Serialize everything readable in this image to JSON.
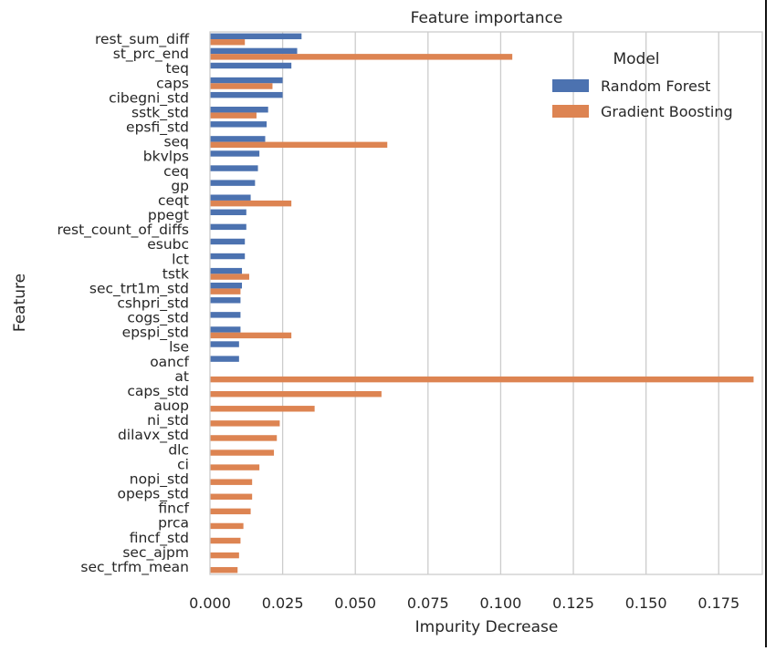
{
  "chart_data": {
    "type": "bar",
    "orientation": "horizontal",
    "title": "Feature importance",
    "xlabel": "Impurity Decrease",
    "ylabel": "Feature",
    "xlim": [
      0,
      0.19
    ],
    "xticks": [
      "0.000",
      "0.025",
      "0.050",
      "0.075",
      "0.100",
      "0.125",
      "0.150",
      "0.175"
    ],
    "grid": "vertical",
    "legend": {
      "title": "Model",
      "position": "top-right"
    },
    "categories": [
      "rest_sum_diff",
      "st_prc_end",
      "teq",
      "caps",
      "cibegni_std",
      "sstk_std",
      "epsfi_std",
      "seq",
      "bkvlps",
      "ceq",
      "gp",
      "ceqt",
      "ppegt",
      "rest_count_of_diffs",
      "esubc",
      "lct",
      "tstk",
      "sec_trt1m_std",
      "cshpri_std",
      "cogs_std",
      "epspi_std",
      "lse",
      "oancf",
      "at",
      "caps_std",
      "auop",
      "ni_std",
      "dilavx_std",
      "dlc",
      "ci",
      "nopi_std",
      "opeps_std",
      "fincf",
      "prca",
      "fincf_std",
      "sec_ajpm",
      "sec_trfm_mean"
    ],
    "series": [
      {
        "name": "Random Forest",
        "color": "#4C72B0",
        "values": [
          0.0315,
          0.03,
          0.028,
          0.025,
          0.025,
          0.02,
          0.0195,
          0.019,
          0.017,
          0.0165,
          0.0155,
          0.014,
          0.0125,
          0.0125,
          0.012,
          0.012,
          0.011,
          0.011,
          0.0105,
          0.0105,
          0.0105,
          0.01,
          0.01,
          null,
          null,
          null,
          null,
          null,
          null,
          null,
          null,
          null,
          null,
          null,
          null,
          null,
          null
        ]
      },
      {
        "name": "Gradient Boosting",
        "color": "#DD8452",
        "values": [
          0.012,
          0.104,
          null,
          0.0215,
          null,
          0.016,
          null,
          0.061,
          null,
          null,
          null,
          0.028,
          null,
          null,
          null,
          null,
          0.0135,
          0.0105,
          null,
          null,
          0.028,
          null,
          null,
          0.187,
          0.059,
          0.036,
          0.024,
          0.023,
          0.022,
          0.017,
          0.0145,
          0.0145,
          0.014,
          0.0115,
          0.0105,
          0.01,
          0.0095
        ]
      }
    ]
  }
}
